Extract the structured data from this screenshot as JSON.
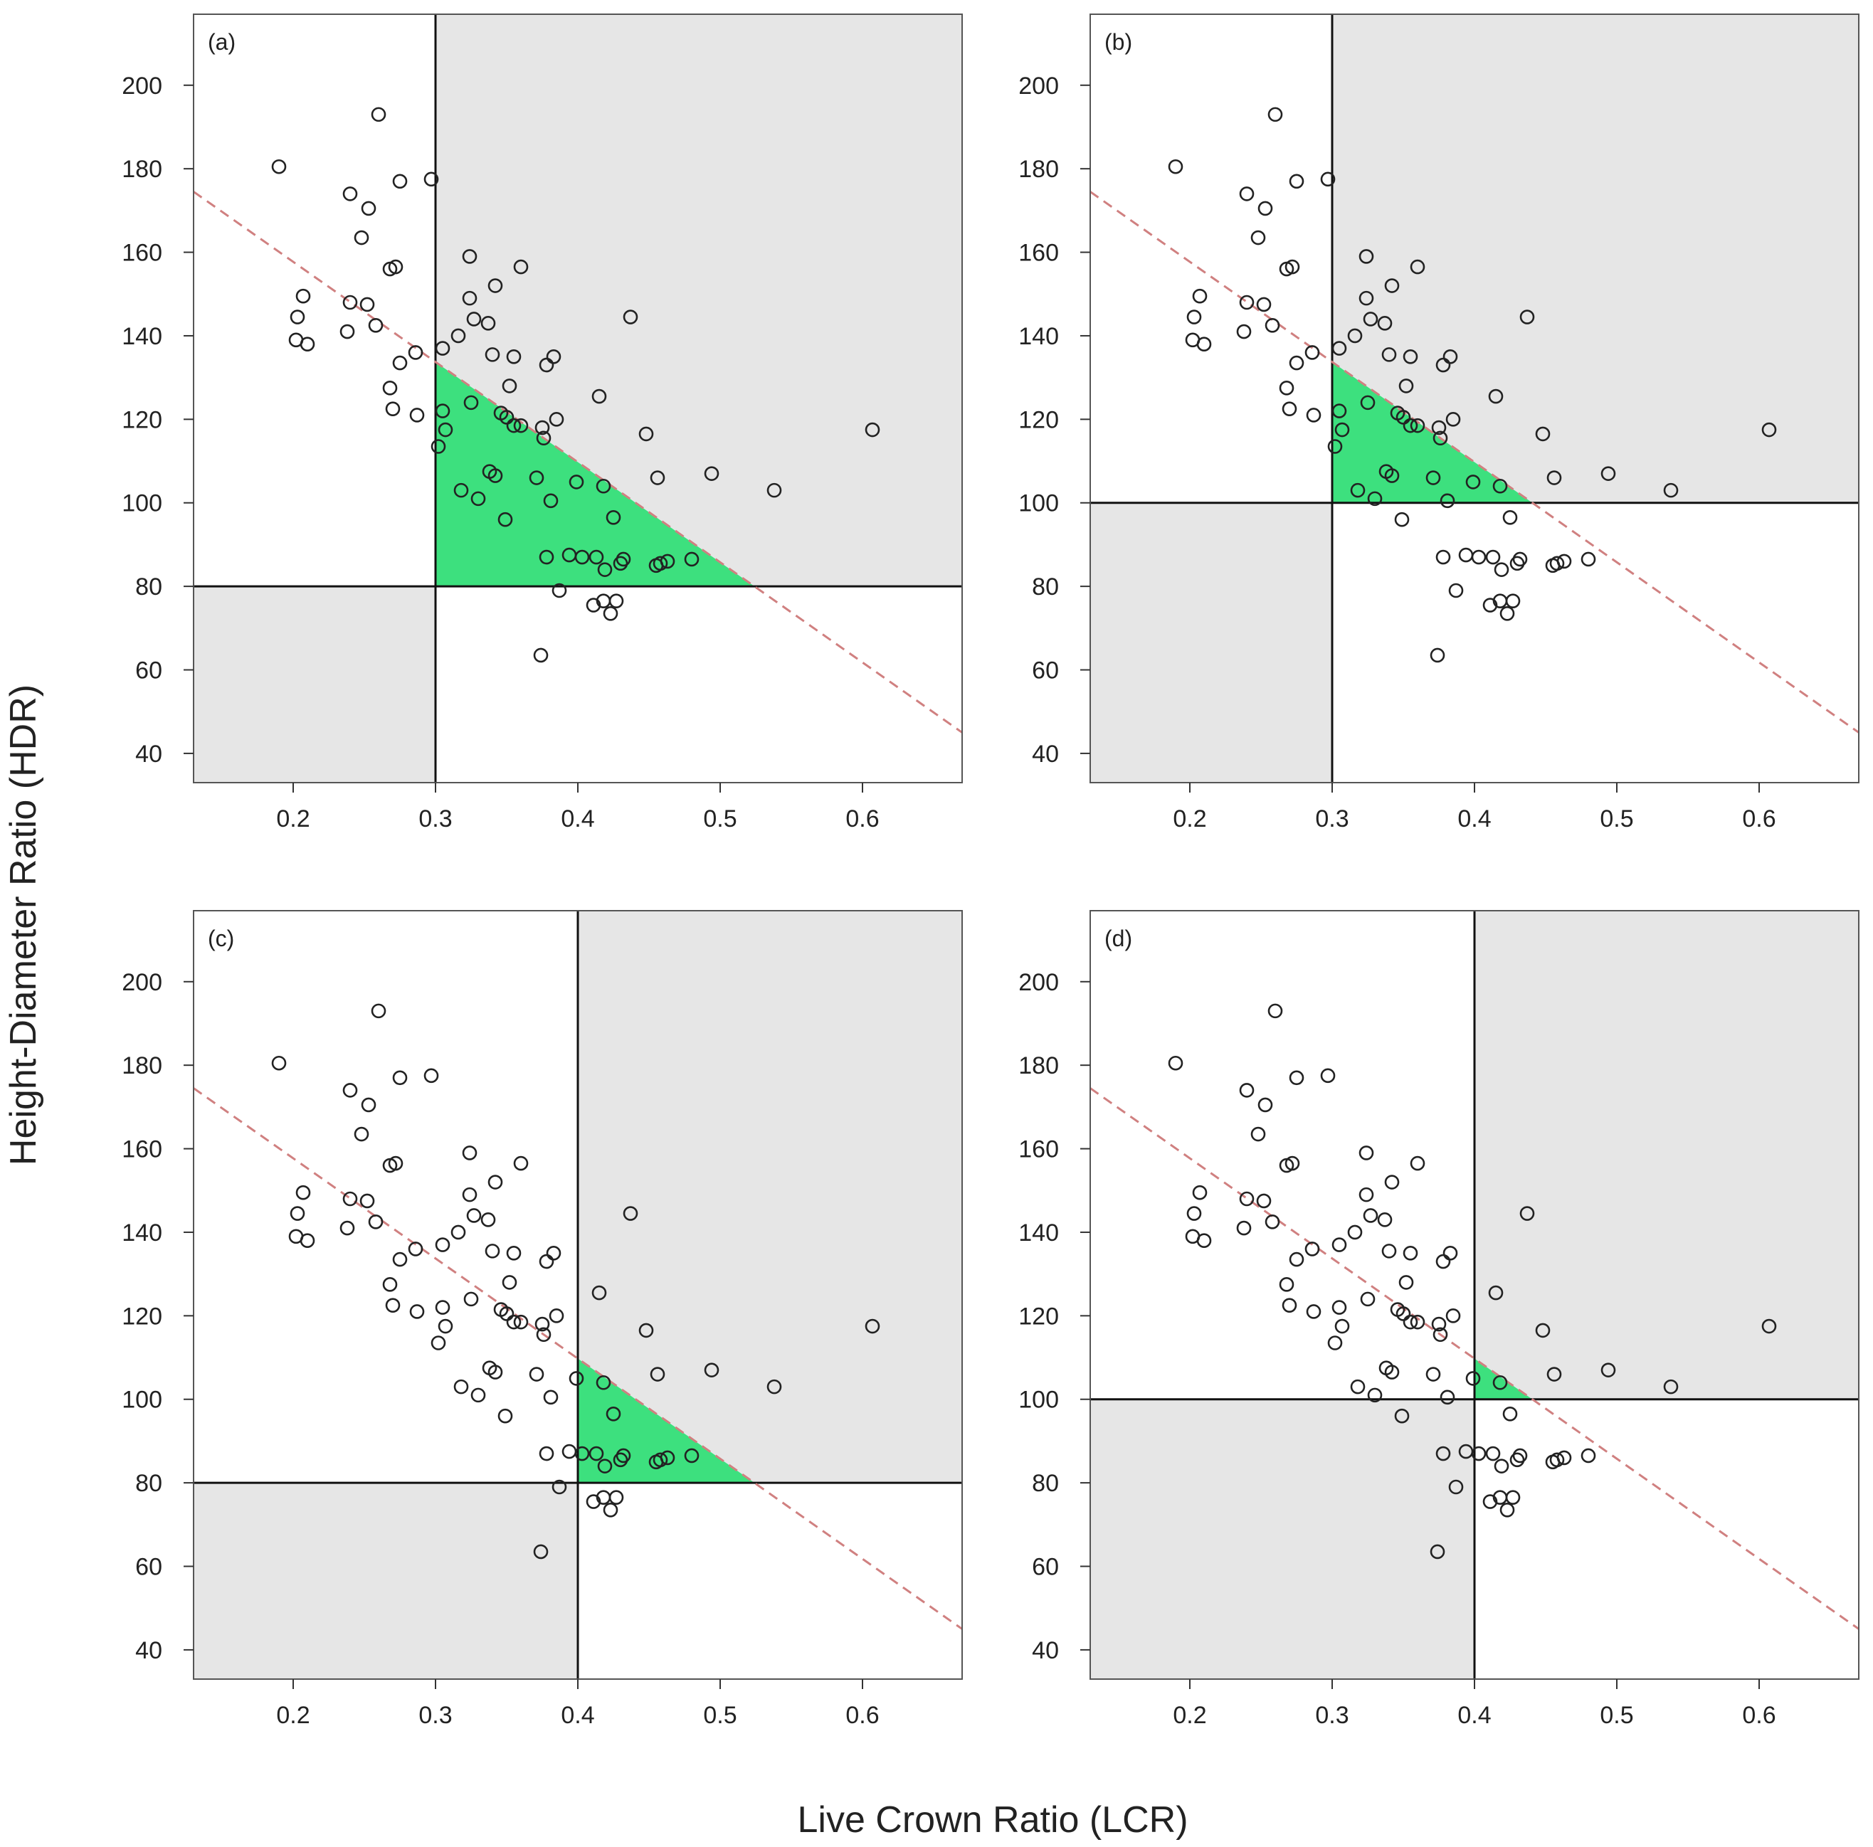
{
  "figure": {
    "xlabel": "Live Crown Ratio (LCR)",
    "ylabel": "Height-Diameter Ratio (HDR)"
  },
  "colors": {
    "shade": "#e6e6e6",
    "highlight": "#3de07e",
    "points": "#222222",
    "dashed": "#d08080",
    "lines": "#111111"
  },
  "chart_data": [
    {
      "type": "scatter",
      "label": "(a)",
      "xlim": [
        0.13,
        0.67
      ],
      "ylim": [
        33,
        217
      ],
      "xticks": [
        "0.2",
        "0.3",
        "0.4",
        "0.5",
        "0.6"
      ],
      "yticks": [
        "40",
        "60",
        "80",
        "100",
        "120",
        "140",
        "160",
        "180",
        "200"
      ],
      "lcr_threshold": 0.3,
      "hdr_threshold": 80
    },
    {
      "type": "scatter",
      "label": "(b)",
      "xlim": [
        0.13,
        0.67
      ],
      "ylim": [
        33,
        217
      ],
      "xticks": [
        "0.2",
        "0.3",
        "0.4",
        "0.5",
        "0.6"
      ],
      "yticks": [
        "40",
        "60",
        "80",
        "100",
        "120",
        "140",
        "160",
        "180",
        "200"
      ],
      "lcr_threshold": 0.3,
      "hdr_threshold": 100
    },
    {
      "type": "scatter",
      "label": "(c)",
      "xlim": [
        0.13,
        0.67
      ],
      "ylim": [
        33,
        217
      ],
      "xticks": [
        "0.2",
        "0.3",
        "0.4",
        "0.5",
        "0.6"
      ],
      "yticks": [
        "40",
        "60",
        "80",
        "100",
        "120",
        "140",
        "160",
        "180",
        "200"
      ],
      "lcr_threshold": 0.4,
      "hdr_threshold": 80
    },
    {
      "type": "scatter",
      "label": "(d)",
      "xlim": [
        0.13,
        0.67
      ],
      "ylim": [
        33,
        217
      ],
      "xticks": [
        "0.2",
        "0.3",
        "0.4",
        "0.5",
        "0.6"
      ],
      "yticks": [
        "40",
        "60",
        "80",
        "100",
        "120",
        "140",
        "160",
        "180",
        "200"
      ],
      "lcr_threshold": 0.4,
      "hdr_threshold": 100
    }
  ],
  "reference_line": {
    "style": "dashed",
    "points": [
      [
        0.13,
        174.5
      ],
      [
        0.67,
        45
      ]
    ]
  },
  "points": [
    [
      0.19,
      180.5
    ],
    [
      0.26,
      193
    ],
    [
      0.24,
      174
    ],
    [
      0.253,
      170.5
    ],
    [
      0.275,
      177
    ],
    [
      0.297,
      177.5
    ],
    [
      0.248,
      163.5
    ],
    [
      0.268,
      156
    ],
    [
      0.272,
      156.5
    ],
    [
      0.24,
      148
    ],
    [
      0.252,
      147.5
    ],
    [
      0.207,
      149.5
    ],
    [
      0.203,
      144.5
    ],
    [
      0.258,
      142.5
    ],
    [
      0.202,
      139
    ],
    [
      0.21,
      138
    ],
    [
      0.238,
      141
    ],
    [
      0.286,
      136
    ],
    [
      0.275,
      133.5
    ],
    [
      0.268,
      127.5
    ],
    [
      0.27,
      122.5
    ],
    [
      0.287,
      121
    ],
    [
      0.324,
      159
    ],
    [
      0.36,
      156.5
    ],
    [
      0.342,
      152
    ],
    [
      0.324,
      149
    ],
    [
      0.327,
      144
    ],
    [
      0.337,
      143
    ],
    [
      0.316,
      140
    ],
    [
      0.305,
      137
    ],
    [
      0.34,
      135.5
    ],
    [
      0.355,
      135
    ],
    [
      0.383,
      135
    ],
    [
      0.378,
      133
    ],
    [
      0.437,
      144.5
    ],
    [
      0.352,
      128
    ],
    [
      0.415,
      125.5
    ],
    [
      0.325,
      124
    ],
    [
      0.346,
      121.5
    ],
    [
      0.35,
      120.5
    ],
    [
      0.385,
      120
    ],
    [
      0.305,
      122
    ],
    [
      0.307,
      117.5
    ],
    [
      0.302,
      113.5
    ],
    [
      0.355,
      118.5
    ],
    [
      0.36,
      118.5
    ],
    [
      0.375,
      118
    ],
    [
      0.376,
      115.5
    ],
    [
      0.448,
      116.5
    ],
    [
      0.607,
      117.5
    ],
    [
      0.338,
      107.5
    ],
    [
      0.342,
      106.5
    ],
    [
      0.371,
      106
    ],
    [
      0.456,
      106
    ],
    [
      0.494,
      107
    ],
    [
      0.538,
      103
    ],
    [
      0.318,
      103
    ],
    [
      0.33,
      101
    ],
    [
      0.399,
      105
    ],
    [
      0.381,
      100.5
    ],
    [
      0.418,
      104
    ],
    [
      0.349,
      96
    ],
    [
      0.425,
      96.5
    ],
    [
      0.378,
      87
    ],
    [
      0.394,
      87.5
    ],
    [
      0.403,
      87
    ],
    [
      0.413,
      87
    ],
    [
      0.43,
      85.5
    ],
    [
      0.432,
      86.5
    ],
    [
      0.455,
      85
    ],
    [
      0.458,
      85.5
    ],
    [
      0.463,
      86
    ],
    [
      0.48,
      86.5
    ],
    [
      0.419,
      84
    ],
    [
      0.387,
      79
    ],
    [
      0.411,
      75.5
    ],
    [
      0.418,
      76.5
    ],
    [
      0.427,
      76.5
    ],
    [
      0.423,
      73.5
    ],
    [
      0.374,
      63.5
    ]
  ]
}
